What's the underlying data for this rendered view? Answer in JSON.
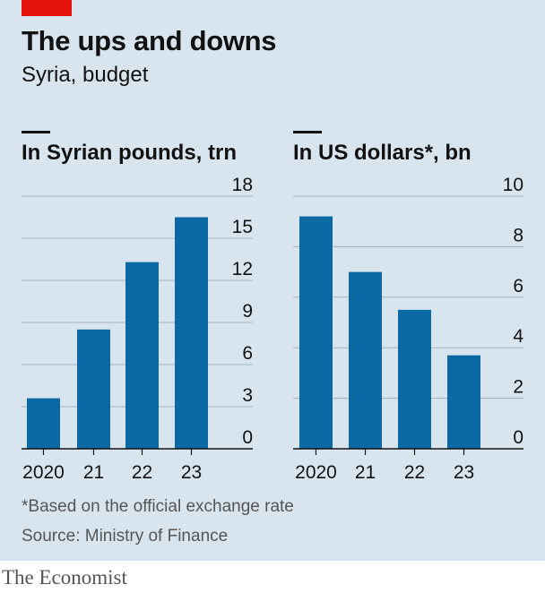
{
  "header": {
    "title": "The ups and downs",
    "subtitle": "Syria, budget"
  },
  "colors": {
    "bar": "#0b6aa4",
    "grid": "#9fb3c1",
    "axis": "#121212",
    "background": "#d8e5ef",
    "accent_tag": "#e3120b"
  },
  "chart_data": [
    {
      "type": "bar",
      "title": "In Syrian pounds, trn",
      "categories": [
        "2020",
        "21",
        "22",
        "23"
      ],
      "values": [
        3.6,
        8.5,
        13.3,
        16.5
      ],
      "ylim": [
        0,
        18
      ],
      "yticks": [
        "0",
        "3",
        "6",
        "9",
        "12",
        "15",
        "18"
      ],
      "ytick_values": [
        0,
        3,
        6,
        9,
        12,
        15,
        18
      ],
      "ytick_side": "right",
      "grid": true,
      "xlabel": "",
      "ylabel": ""
    },
    {
      "type": "bar",
      "title": "In US dollars*, bn",
      "categories": [
        "2020",
        "21",
        "22",
        "23"
      ],
      "values": [
        9.2,
        7.0,
        5.5,
        3.7
      ],
      "ylim": [
        0,
        10
      ],
      "yticks": [
        "0",
        "2",
        "4",
        "6",
        "8",
        "10"
      ],
      "ytick_values": [
        0,
        2,
        4,
        6,
        8,
        10
      ],
      "ytick_side": "right",
      "grid": true,
      "xlabel": "",
      "ylabel": ""
    }
  ],
  "footnote": "*Based on the official exchange rate",
  "source": "Source: Ministry of Finance",
  "brand": "The Economist"
}
